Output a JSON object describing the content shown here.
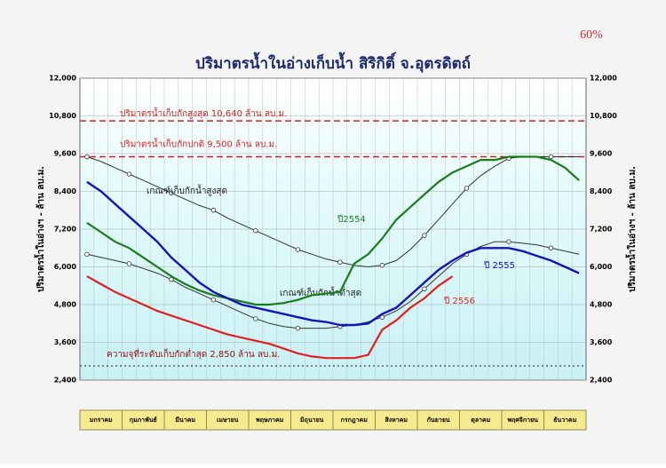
{
  "chart_data": {
    "type": "line",
    "title": "ปริมาตรน้ำในอ่างเก็บน้ำ สิริกิติ์ จ.อุตรดิตถ์",
    "corner_note": "60%",
    "ylabel": "ปริมาตรน้ำในอ่างฯ - ล้าน ลบ.ม.",
    "months": [
      "มกราคม",
      "กุมภาพันธ์",
      "มีนาคม",
      "เมษายน",
      "พฤษภาคม",
      "มิถุนายน",
      "กรกฎาคม",
      "สิงหาคม",
      "กันยายน",
      "ตุลาคม",
      "พฤศจิกายน",
      "ธันวาคม"
    ],
    "ylim": [
      2400,
      12000
    ],
    "yticks": [
      {
        "value": 2400,
        "label": "2,400"
      },
      {
        "value": 3600,
        "label": "3,600"
      },
      {
        "value": 4800,
        "label": "4,800"
      },
      {
        "value": 6000,
        "label": "6,000"
      },
      {
        "value": 7200,
        "label": "7,200"
      },
      {
        "value": 8400,
        "label": "8,400"
      },
      {
        "value": 9600,
        "label": "9,600"
      },
      {
        "value": 10800,
        "label": "10,800"
      },
      {
        "value": 12000,
        "label": "12,000"
      }
    ],
    "grid": true,
    "reference_lines": [
      {
        "value": 10640,
        "label": "ปริมาตรน้ำเก็บกักสูงสุด 10,640 ล้าน ลบ.ม.",
        "color": "#d42020"
      },
      {
        "value": 9500,
        "label": "ปริมาตรน้ำเก็บกักปกติ 9,500 ล้าน ลบ.ม.",
        "color": "#d42020"
      },
      {
        "value": 2850,
        "label": "ความจุที่ระดับเก็บกักต่ำสุด 2,850 ล้าน ลบ.ม.",
        "color": "#333333"
      }
    ],
    "series": [
      {
        "name": "เกณฑ์เก็บกักน้ำสูงสุด",
        "color": "#333333",
        "values": [
          9500,
          9350,
          9150,
          8950,
          8750,
          8550,
          8350,
          8150,
          7950,
          7800,
          7550,
          7350,
          7150,
          6950,
          6750,
          6550,
          6400,
          6250,
          6150,
          6050,
          6000,
          6050,
          6200,
          6550,
          7000,
          7500,
          8000,
          8500,
          8900,
          9200,
          9450,
          9500,
          9500,
          9500,
          9500,
          9500
        ]
      },
      {
        "name": "เกณฑ์เก็บกักน้ำต่ำสุด",
        "color": "#333333",
        "values": [
          6400,
          6300,
          6200,
          6100,
          5950,
          5800,
          5600,
          5350,
          5150,
          4950,
          4750,
          4550,
          4350,
          4200,
          4100,
          4050,
          4050,
          4050,
          4100,
          4150,
          4250,
          4400,
          4600,
          4900,
          5300,
          5700,
          6100,
          6400,
          6650,
          6800,
          6800,
          6750,
          6700,
          6600,
          6500,
          6400
        ]
      },
      {
        "name": "ปี2554",
        "color": "#1a7d1a",
        "values": [
          7400,
          7100,
          6800,
          6600,
          6300,
          6000,
          5700,
          5450,
          5250,
          5100,
          5000,
          4900,
          4800,
          4800,
          4850,
          4950,
          5100,
          5150,
          5200,
          6100,
          6400,
          6900,
          7500,
          7900,
          8300,
          8700,
          9000,
          9200,
          9400,
          9400,
          9500,
          9500,
          9500,
          9400,
          9150,
          8750
        ]
      },
      {
        "name": "ปี 2555",
        "color": "#1414b8",
        "values": [
          8700,
          8400,
          8000,
          7600,
          7200,
          6800,
          6300,
          5900,
          5500,
          5200,
          5000,
          4800,
          4700,
          4600,
          4500,
          4400,
          4300,
          4250,
          4150,
          4150,
          4200,
          4500,
          4700,
          5100,
          5500,
          5900,
          6200,
          6450,
          6600,
          6600,
          6600,
          6500,
          6350,
          6200,
          6000,
          5800
        ]
      },
      {
        "name": "ปี 2556",
        "color": "#e02020",
        "values": [
          5700,
          5450,
          5200,
          5000,
          4800,
          4600,
          4450,
          4300,
          4150,
          4000,
          3850,
          3750,
          3650,
          3550,
          3400,
          3250,
          3150,
          3100,
          3100,
          3100,
          3200,
          4000,
          4300,
          4700,
          5000,
          5400,
          5700,
          null,
          null,
          null,
          null,
          null,
          null,
          null,
          null,
          null
        ]
      }
    ]
  }
}
